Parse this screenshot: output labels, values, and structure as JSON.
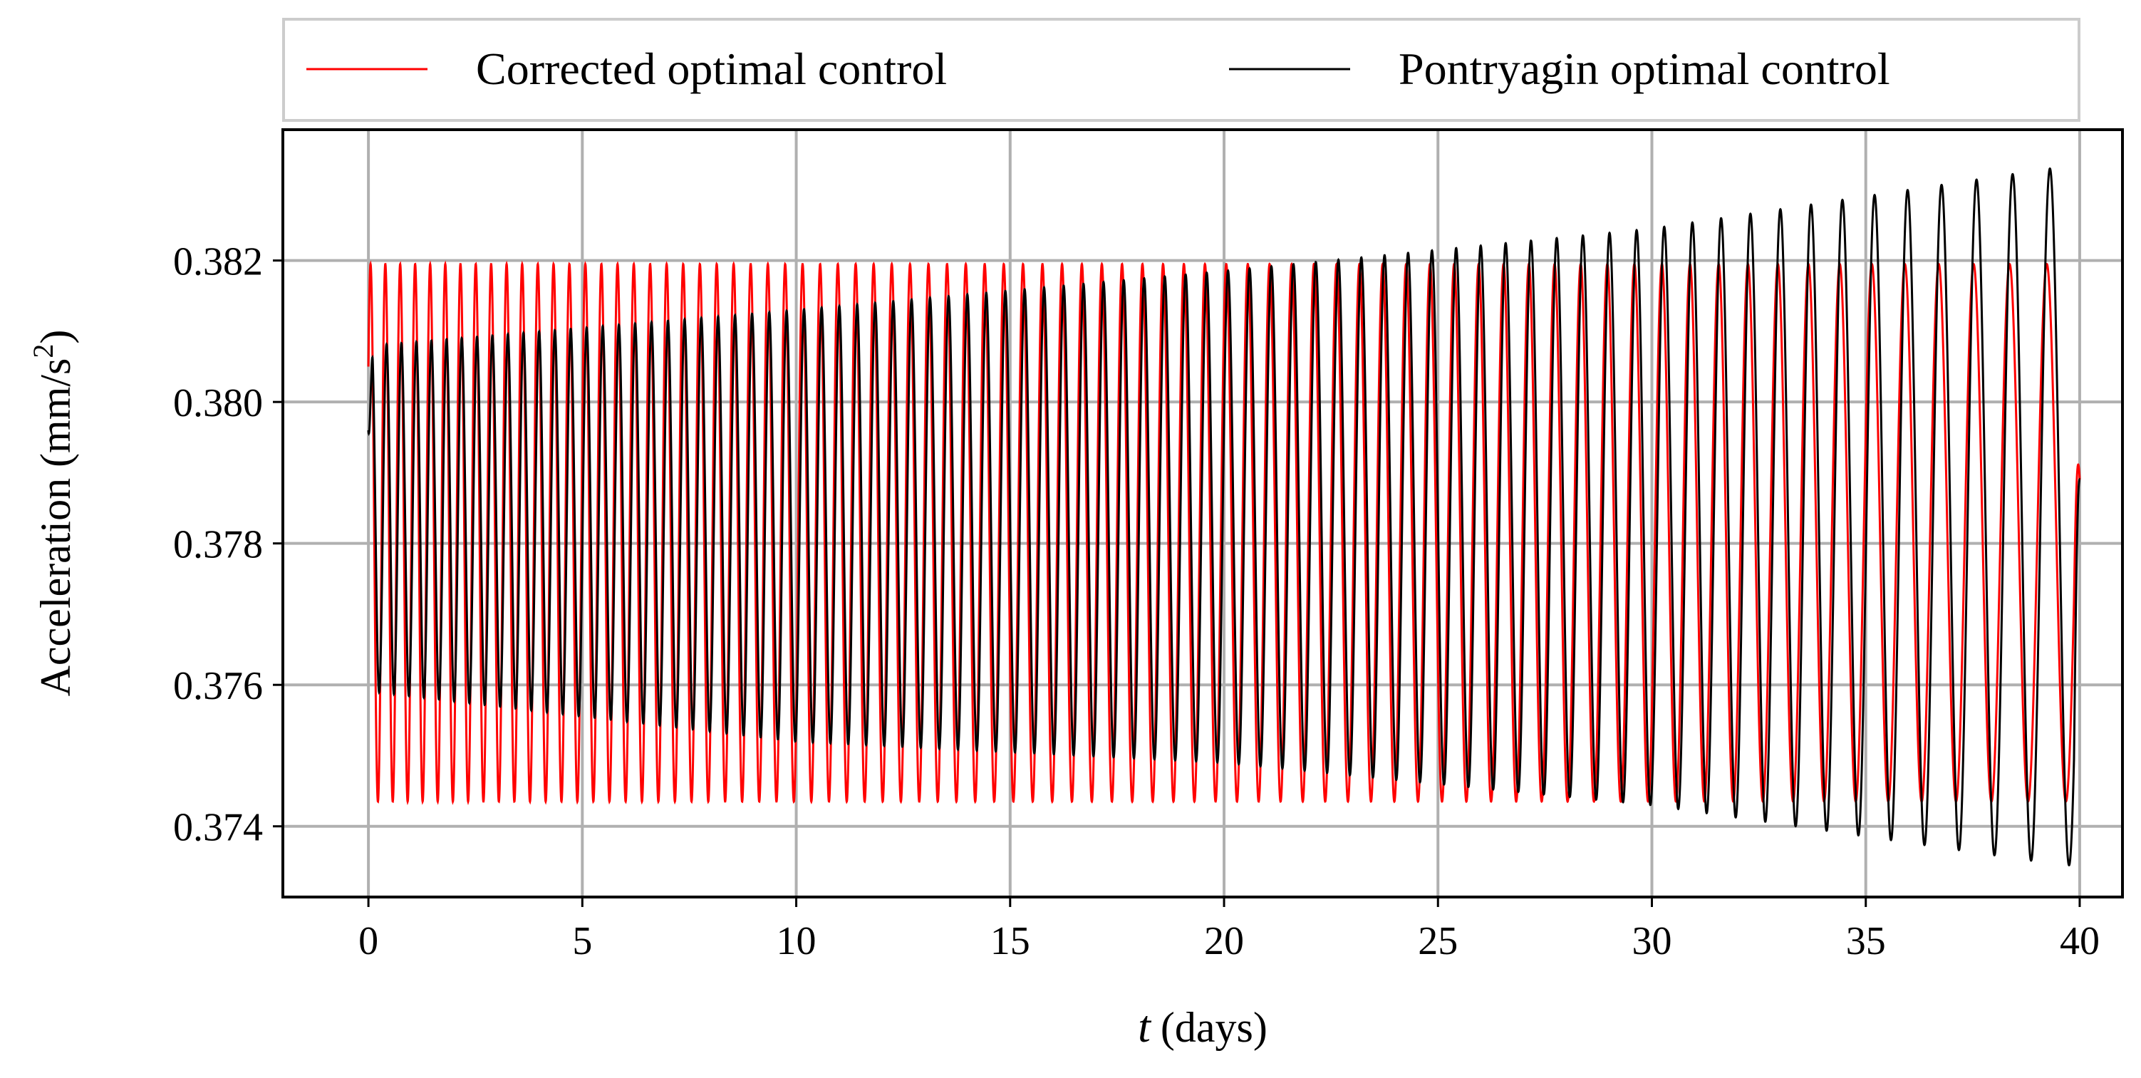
{
  "chart_data": {
    "type": "line",
    "xlabel": "t",
    "xlabel_unit": "(days)",
    "ylabel": "Acceleration (mm/s",
    "ylabel_sup": "2",
    "ylabel_close": ")",
    "xlim": [
      -2,
      41
    ],
    "ylim": [
      0.373,
      0.38385
    ],
    "xticks": [
      0,
      5,
      10,
      15,
      20,
      25,
      30,
      35,
      40
    ],
    "xtick_labels": [
      "0",
      "5",
      "10",
      "15",
      "20",
      "25",
      "30",
      "35",
      "40"
    ],
    "yticks": [
      0.374,
      0.376,
      0.378,
      0.38,
      0.382
    ],
    "ytick_labels": [
      "0.374",
      "0.376",
      "0.378",
      "0.380",
      "0.382"
    ],
    "grid": true,
    "legend_position": "top",
    "series": [
      {
        "name": "Corrected optimal control",
        "color": "#ff0000",
        "description_model": "oscillation with chirped frequency; amplitude bounded between 0.37435 and 0.38195",
        "start_value": 0.3805,
        "end_value": 0.3789,
        "x_start": 0,
        "x_end": 40,
        "upper_bound": 0.38195,
        "lower_bound": 0.37435,
        "num_cycles": 80
      },
      {
        "name": "Pontryagin optimal control",
        "color": "#000000",
        "start_value": 0.3796,
        "end_value": 0.3789,
        "x_start": 0,
        "x_end": 40,
        "upper_envelope": [
          [
            0.15,
            0.3808
          ],
          [
            10,
            0.3813
          ],
          [
            20,
            0.38185
          ],
          [
            30,
            0.38245
          ],
          [
            39.3,
            0.3833
          ]
        ],
        "lower_envelope": [
          [
            0.15,
            0.3759
          ],
          [
            10,
            0.3752
          ],
          [
            20,
            0.3749
          ],
          [
            30,
            0.3743
          ],
          [
            39.6,
            0.37345
          ]
        ],
        "num_cycles": 80
      }
    ]
  }
}
